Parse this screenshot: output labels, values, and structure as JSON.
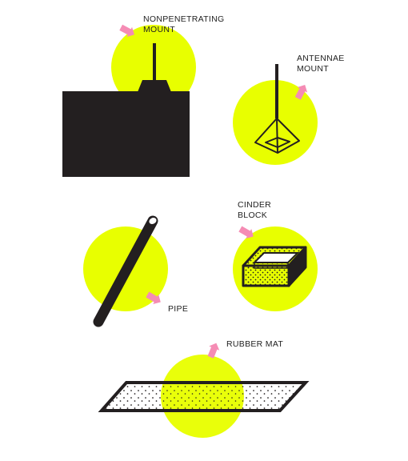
{
  "colors": {
    "highlight": "#e8ff00",
    "ink": "#231f20",
    "arrow": "#f58cb4",
    "background": "#ffffff"
  },
  "mounts": {
    "nonpenetrating": {
      "line1": "NONPENETRATING",
      "line2": "MOUNT"
    },
    "antennae": {
      "line1": "ANTENNAE",
      "line2": "MOUNT"
    },
    "cinder_block": {
      "line1": "CINDER",
      "line2": "BLOCK"
    },
    "pipe": {
      "label": "PIPE"
    },
    "rubber_mat": {
      "label": "RUBBER MAT"
    }
  },
  "icons": [
    "pointer-arrow-icon",
    "building-with-mast-icon",
    "antenna-pyramid-icon",
    "pipe-icon",
    "cinder-block-icon",
    "rubber-mat-icon"
  ]
}
